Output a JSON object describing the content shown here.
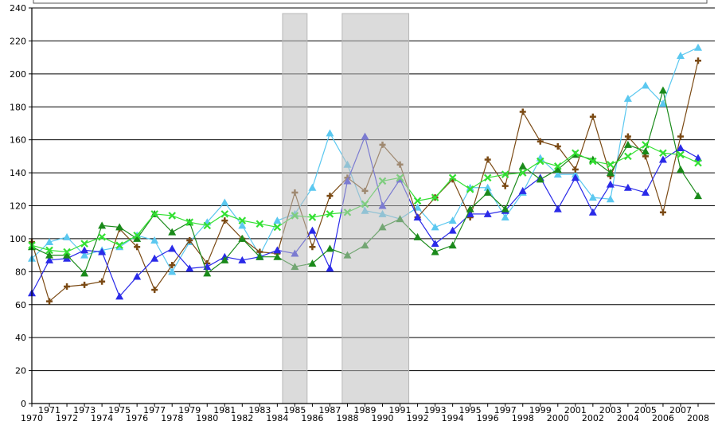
{
  "chart_data": {
    "type": "line",
    "title": "",
    "xlabel": "",
    "ylabel": "",
    "x": [
      1970,
      1971,
      1972,
      1973,
      1974,
      1975,
      1976,
      1977,
      1978,
      1979,
      1980,
      1981,
      1982,
      1983,
      1984,
      1985,
      1986,
      1987,
      1988,
      1989,
      1990,
      1991,
      1992,
      1993,
      1994,
      1995,
      1996,
      1997,
      1998,
      1999,
      2000,
      2001,
      2002,
      2003,
      2004,
      2005,
      2006,
      2007,
      2008
    ],
    "xlim": [
      1970,
      2008
    ],
    "ylim": [
      0,
      240
    ],
    "yticks": [
      0,
      20,
      40,
      60,
      80,
      100,
      120,
      140,
      160,
      180,
      200,
      220,
      240
    ],
    "grid": true,
    "legend": "none",
    "shaded_ranges": [
      [
        1984.3,
        1985.7
      ],
      [
        1987.7,
        1991.5
      ]
    ],
    "series": [
      {
        "color": "#5bc8f0",
        "marker": "triangle",
        "values": [
          88,
          98,
          101,
          90,
          93,
          95,
          102,
          99,
          80,
          98,
          110,
          122,
          108,
          90,
          111,
          115,
          131,
          164,
          145,
          117,
          115,
          112,
          119,
          107,
          111,
          131,
          131,
          113,
          128,
          149,
          139,
          139,
          125,
          124,
          185,
          193,
          182,
          211,
          216
        ]
      },
      {
        "color": "#7b4a14",
        "marker": "plus",
        "values": [
          98,
          62,
          71,
          72,
          74,
          106,
          95,
          69,
          84,
          99,
          85,
          111,
          100,
          92,
          91,
          128,
          95,
          126,
          137,
          129,
          157,
          145,
          113,
          125,
          136,
          113,
          148,
          132,
          177,
          159,
          156,
          142,
          174,
          138,
          162,
          150,
          116,
          162,
          208
        ]
      },
      {
        "color": "#2a2ae8",
        "marker": "triangle",
        "values": [
          67,
          87,
          88,
          93,
          92,
          65,
          77,
          88,
          94,
          82,
          83,
          89,
          87,
          89,
          93,
          91,
          105,
          82,
          135,
          162,
          120,
          136,
          113,
          97,
          105,
          115,
          115,
          117,
          129,
          137,
          118,
          137,
          116,
          133,
          131,
          128,
          148,
          155,
          149
        ]
      },
      {
        "color": "#1a8a1a",
        "marker": "triangle",
        "values": [
          95,
          90,
          90,
          79,
          108,
          107,
          100,
          115,
          104,
          110,
          79,
          87,
          100,
          89,
          89,
          83,
          85,
          94,
          90,
          96,
          107,
          112,
          101,
          92,
          96,
          118,
          128,
          118,
          144,
          136,
          142,
          151,
          148,
          140,
          157,
          153,
          190,
          142,
          126
        ]
      },
      {
        "color": "#33e033",
        "marker": "x",
        "values": [
          96,
          93,
          92,
          97,
          101,
          96,
          102,
          115,
          114,
          110,
          108,
          115,
          111,
          109,
          107,
          114,
          113,
          115,
          116,
          121,
          135,
          137,
          123,
          125,
          137,
          130,
          137,
          139,
          140,
          147,
          144,
          152,
          147,
          145,
          150,
          157,
          152,
          151,
          146
        ]
      }
    ]
  }
}
